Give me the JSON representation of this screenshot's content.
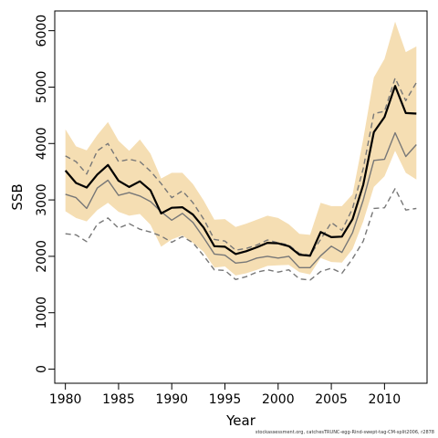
{
  "chart_data": {
    "type": "line",
    "title": "",
    "xlabel": "Year",
    "ylabel": "SSB",
    "xlim": [
      1979,
      2014
    ],
    "ylim": [
      -250,
      6350
    ],
    "xticks": [
      1980,
      1985,
      1990,
      1995,
      2000,
      2005,
      2010
    ],
    "yticks": [
      0,
      1000,
      2000,
      3000,
      4000,
      5000,
      6000
    ],
    "grid": false,
    "legend": "none",
    "years": [
      1980,
      1981,
      1982,
      1983,
      1984,
      1985,
      1986,
      1987,
      1988,
      1989,
      1990,
      1991,
      1992,
      1993,
      1994,
      1995,
      1996,
      1997,
      1998,
      1999,
      2000,
      2001,
      2002,
      2003,
      2004,
      2005,
      2006,
      2007,
      2008,
      2009,
      2010,
      2011,
      2012,
      2013
    ],
    "band": {
      "color": "#f5deb3",
      "upper": [
        4250,
        3950,
        3880,
        4150,
        4380,
        4050,
        3870,
        4070,
        3820,
        3380,
        3480,
        3480,
        3280,
        2990,
        2650,
        2660,
        2520,
        2580,
        2650,
        2720,
        2680,
        2570,
        2400,
        2380,
        2950,
        2890,
        2890,
        3100,
        4080,
        5170,
        5500,
        6160,
        5620,
        5720
      ],
      "lower": [
        2800,
        2680,
        2620,
        2820,
        2950,
        2790,
        2720,
        2750,
        2560,
        2170,
        2300,
        2370,
        2240,
        2080,
        1800,
        1820,
        1660,
        1700,
        1760,
        1830,
        1840,
        1850,
        1720,
        1680,
        1970,
        1900,
        1890,
        2130,
        2620,
        3230,
        3420,
        3870,
        3480,
        3360
      ]
    },
    "series": [
      {
        "role": "estimate",
        "color": "#000000",
        "style": "solid",
        "width": 2.2,
        "values": [
          3520,
          3300,
          3220,
          3450,
          3620,
          3340,
          3230,
          3330,
          3170,
          2760,
          2860,
          2870,
          2740,
          2510,
          2180,
          2170,
          2040,
          2090,
          2160,
          2240,
          2230,
          2180,
          2030,
          2010,
          2430,
          2340,
          2350,
          2660,
          3270,
          4200,
          4470,
          5020,
          4540,
          4530
        ]
      },
      {
        "role": "median",
        "color": "#777777",
        "style": "solid",
        "width": 1.4,
        "values": [
          3100,
          3040,
          2850,
          3210,
          3350,
          3080,
          3130,
          3070,
          2970,
          2790,
          2640,
          2760,
          2600,
          2330,
          2040,
          2020,
          1880,
          1900,
          1970,
          2000,
          1970,
          2000,
          1800,
          1800,
          2010,
          2180,
          2070,
          2420,
          3000,
          3700,
          3720,
          4190,
          3770,
          3980
        ]
      },
      {
        "role": "upper-quantile",
        "color": "#777777",
        "style": "dashed",
        "width": 1.4,
        "values": [
          3780,
          3680,
          3460,
          3870,
          4000,
          3680,
          3720,
          3680,
          3510,
          3290,
          3040,
          3160,
          2950,
          2660,
          2300,
          2270,
          2110,
          2140,
          2200,
          2290,
          2240,
          2200,
          2050,
          2020,
          2300,
          2600,
          2460,
          2850,
          3560,
          4530,
          4570,
          5160,
          4760,
          5080
        ]
      },
      {
        "role": "lower-quantile",
        "color": "#777777",
        "style": "dashed",
        "width": 1.4,
        "values": [
          2400,
          2380,
          2260,
          2570,
          2680,
          2500,
          2580,
          2480,
          2430,
          2360,
          2250,
          2350,
          2240,
          2010,
          1760,
          1750,
          1590,
          1640,
          1720,
          1760,
          1720,
          1760,
          1600,
          1580,
          1730,
          1790,
          1700,
          1960,
          2270,
          2850,
          2860,
          3200,
          2820,
          2850
        ]
      }
    ]
  },
  "footer": "stockassessment.org, catchesTRUNC-egg-Rind-swept-tag-CM-split2006, r2878"
}
